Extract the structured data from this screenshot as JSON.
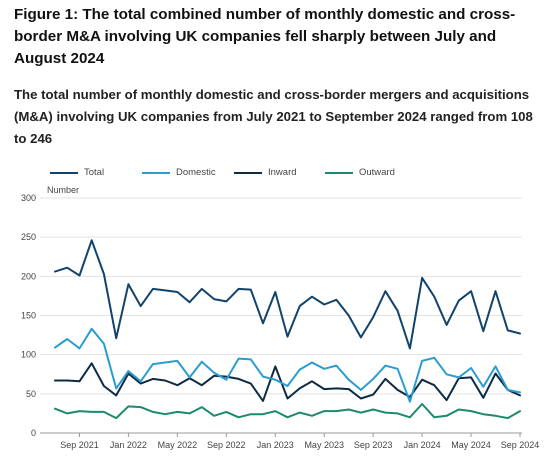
{
  "title": "Figure 1: The total combined number of monthly domestic and cross-border M&A involving UK companies fell sharply between July and August 2024",
  "subtitle": "The total number of monthly domestic and cross-border mergers and acquisitions (M&A) involving UK companies from July 2021 to September 2024 ranged from 108 to 246",
  "chart_data": {
    "type": "line",
    "title": "Figure 1: The total combined number of monthly domestic and cross-border M&A involving UK companies fell sharply between July and August 2024",
    "subtitle": "The total number of monthly domestic and cross-border mergers and acquisitions (M&A) involving UK companies from July 2021 to September 2024 ranged from 108 to 246",
    "ylabel": "Number",
    "xlabel": "",
    "ylim": [
      0,
      300
    ],
    "yticks": [
      "0",
      "50",
      "100",
      "150",
      "200",
      "250",
      "300"
    ],
    "x": [
      "Jul 2021",
      "Aug 2021",
      "Sep 2021",
      "Oct 2021",
      "Nov 2021",
      "Dec 2021",
      "Jan 2022",
      "Feb 2022",
      "Mar 2022",
      "Apr 2022",
      "May 2022",
      "Jun 2022",
      "Jul 2022",
      "Aug 2022",
      "Sep 2022",
      "Oct 2022",
      "Nov 2022",
      "Dec 2022",
      "Jan 2023",
      "Feb 2023",
      "Mar 2023",
      "Apr 2023",
      "May 2023",
      "Jun 2023",
      "Jul 2023",
      "Aug 2023",
      "Sep 2023",
      "Oct 2023",
      "Nov 2023",
      "Dec 2023",
      "Jan 2024",
      "Feb 2024",
      "Mar 2024",
      "Apr 2024",
      "May 2024",
      "Jun 2024",
      "Jul 2024",
      "Aug 2024",
      "Sep 2024"
    ],
    "xticks": [
      {
        "label": "Sep 2021",
        "x": "Sep 2021"
      },
      {
        "label": "Jan 2022",
        "x": "Jan 2022"
      },
      {
        "label": "May 2022",
        "x": "May 2022"
      },
      {
        "label": "Sep 2022",
        "x": "Sep 2022"
      },
      {
        "label": "Jan 2023",
        "x": "Jan 2023"
      },
      {
        "label": "May 2023",
        "x": "May 2023"
      },
      {
        "label": "Sep 2023",
        "x": "Sep 2023"
      },
      {
        "label": "Jan 2024",
        "x": "Jan 2024"
      },
      {
        "label": "May 2024",
        "x": "May 2024"
      },
      {
        "label": "Sep 2024",
        "x": "Sep 2024"
      }
    ],
    "grid": true,
    "legend_position": "top",
    "series": [
      {
        "name": "Total",
        "color": "#12436d",
        "values": [
          206,
          211,
          201,
          246,
          203,
          121,
          190,
          162,
          184,
          182,
          180,
          167,
          184,
          171,
          168,
          184,
          183,
          140,
          180,
          123,
          162,
          174,
          164,
          170,
          150,
          122,
          148,
          181,
          156,
          108,
          198,
          174,
          138,
          169,
          181,
          130,
          181,
          131,
          127
        ]
      },
      {
        "name": "Domestic",
        "color": "#2a9dd0",
        "values": [
          109,
          120,
          108,
          133,
          114,
          57,
          79,
          66,
          88,
          90,
          92,
          71,
          91,
          77,
          68,
          95,
          94,
          72,
          68,
          60,
          81,
          90,
          82,
          86,
          68,
          55,
          69,
          86,
          82,
          40,
          92,
          96,
          75,
          71,
          83,
          59,
          85,
          55,
          52
        ]
      },
      {
        "name": "Inward",
        "color": "#0d2b44",
        "values": [
          67,
          67,
          66,
          89,
          60,
          48,
          76,
          63,
          69,
          67,
          61,
          70,
          61,
          73,
          72,
          69,
          63,
          41,
          85,
          44,
          57,
          66,
          56,
          57,
          56,
          44,
          49,
          69,
          55,
          46,
          68,
          61,
          42,
          70,
          71,
          45,
          76,
          55,
          48
        ]
      },
      {
        "name": "Outward",
        "color": "#1c8a6d",
        "values": [
          31,
          25,
          28,
          27,
          27,
          19,
          34,
          33,
          27,
          24,
          27,
          25,
          33,
          22,
          27,
          20,
          24,
          24,
          28,
          20,
          26,
          22,
          28,
          28,
          30,
          26,
          30,
          26,
          25,
          20,
          37,
          20,
          22,
          30,
          28,
          24,
          22,
          19,
          28
        ]
      }
    ]
  }
}
